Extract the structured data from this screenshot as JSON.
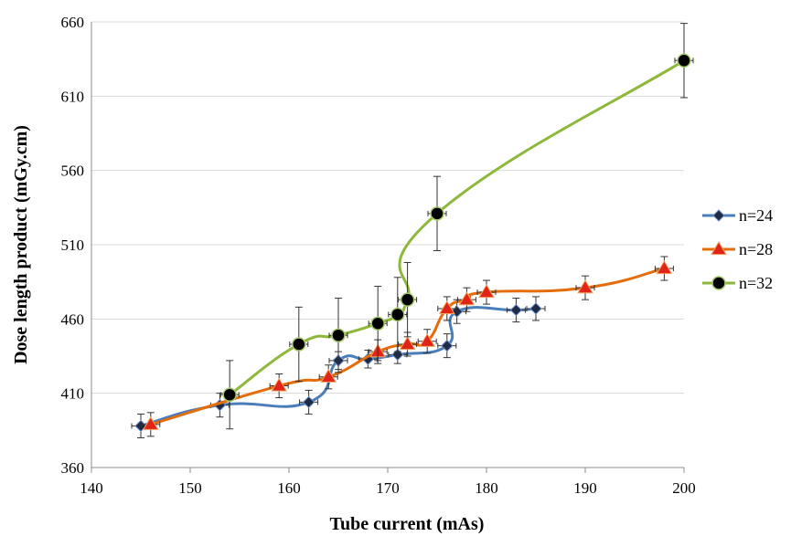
{
  "chart_data": {
    "type": "line",
    "title": "",
    "xlabel": "Tube current (mAs)",
    "ylabel": "Dose length product (mGy.cm)",
    "xlim": [
      140,
      200
    ],
    "ylim": [
      360,
      660
    ],
    "xticks": [
      "140",
      "150",
      "160",
      "170",
      "180",
      "190",
      "200"
    ],
    "yticks": [
      "360",
      "410",
      "460",
      "510",
      "560",
      "610",
      "660"
    ],
    "grid": "horizontal",
    "legend_position": "right",
    "series": [
      {
        "name": "n=24",
        "color": "#4a7ebb",
        "marker": "diamond",
        "marker_color": "#1f2a44",
        "x": [
          145,
          153,
          162,
          165,
          168,
          171,
          176,
          177,
          183,
          185
        ],
        "y": [
          388,
          402,
          404,
          432,
          433,
          436,
          442,
          465,
          466,
          467
        ],
        "y_err": [
          8,
          8,
          8,
          6,
          6,
          6,
          8,
          8,
          8,
          8
        ]
      },
      {
        "name": "n=28",
        "color": "#e46c0a",
        "marker": "triangle",
        "marker_color": "#e02418",
        "x": [
          146,
          159,
          164,
          169,
          172,
          174,
          176,
          178,
          180,
          190,
          198
        ],
        "y": [
          389,
          415,
          421,
          438,
          443,
          445,
          467,
          473,
          478,
          481,
          494
        ],
        "y_err": [
          8,
          8,
          8,
          8,
          8,
          8,
          8,
          8,
          8,
          8,
          8
        ]
      },
      {
        "name": "n=32",
        "color": "#8db83b",
        "marker": "circle",
        "marker_color": "#000000",
        "x": [
          154,
          161,
          165,
          169,
          171,
          172,
          175,
          200
        ],
        "y": [
          409,
          443,
          449,
          457,
          463,
          473,
          531,
          634
        ],
        "y_err": [
          23,
          25,
          25,
          25,
          25,
          25,
          25,
          25
        ]
      }
    ]
  }
}
